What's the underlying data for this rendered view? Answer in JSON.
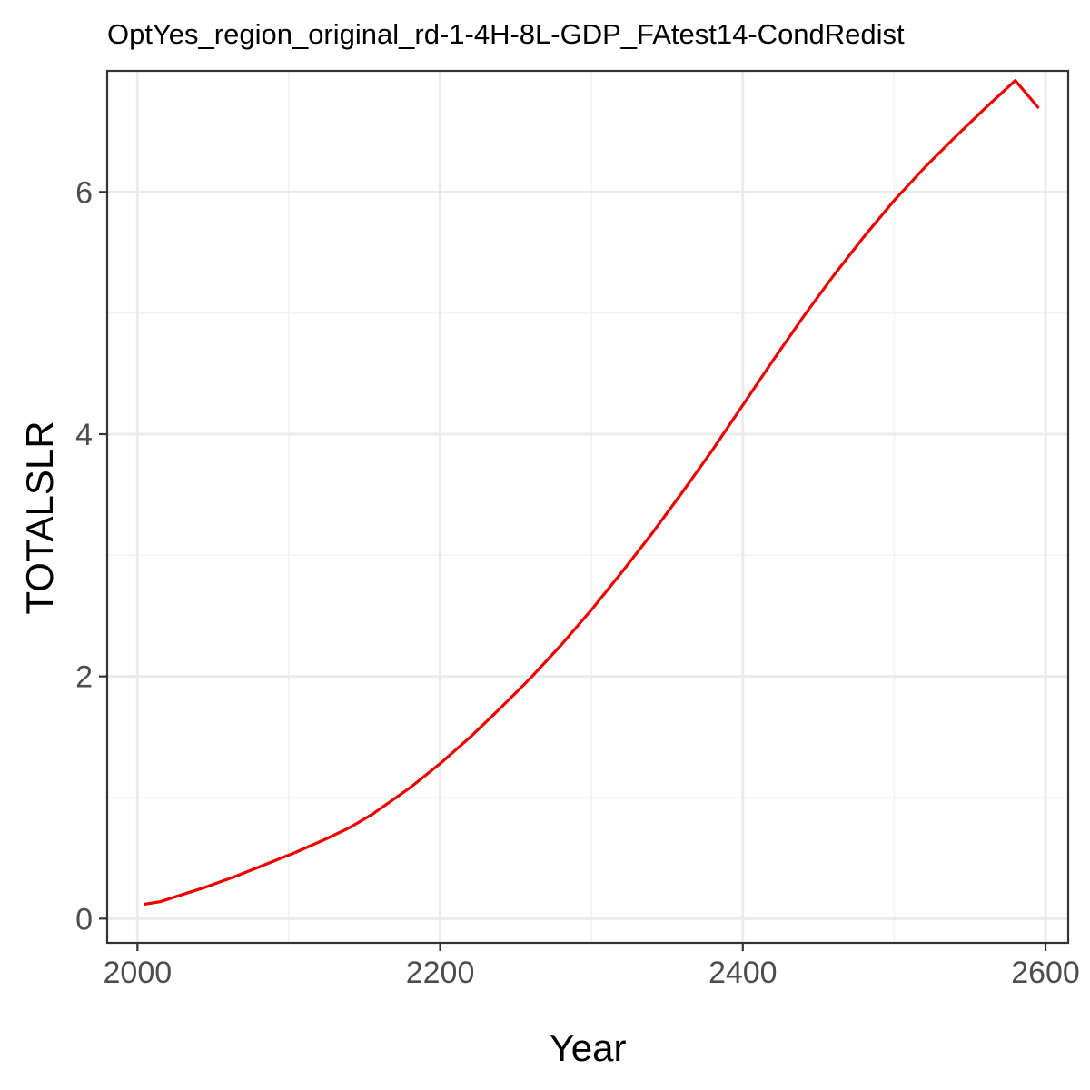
{
  "chart_data": {
    "type": "line",
    "title": "OptYes_region_original_rd-1-4H-8L-GDP_FAtest14-CondRedist",
    "xlabel": "Year",
    "ylabel": "TOTALSLR",
    "xlim": [
      1980,
      2615
    ],
    "ylim": [
      -0.2,
      7.0
    ],
    "x_ticks": [
      2000,
      2200,
      2400,
      2600
    ],
    "x_tick_labels": [
      "2000",
      "2200",
      "2400",
      "2600"
    ],
    "y_ticks": [
      0,
      2,
      4,
      6
    ],
    "y_tick_labels": [
      "0",
      "2",
      "4",
      "6"
    ],
    "x_minor_ticks": [
      2100,
      2300,
      2500
    ],
    "y_minor_ticks": [
      1,
      3,
      5
    ],
    "grid": true,
    "colors": {
      "line": "#ee0000",
      "panel_border": "#333333",
      "grid_major": "#ebebeb",
      "grid_minor": "#f3f3f3"
    },
    "series": [
      {
        "x": [
          2005,
          2015,
          2025,
          2045,
          2065,
          2085,
          2105,
          2125,
          2140,
          2155,
          2180,
          2200,
          2220,
          2240,
          2260,
          2280,
          2300,
          2320,
          2340,
          2360,
          2380,
          2400,
          2420,
          2440,
          2460,
          2480,
          2500,
          2520,
          2540,
          2560,
          2580,
          2595
        ],
        "y": [
          0.12,
          0.14,
          0.18,
          0.26,
          0.35,
          0.45,
          0.55,
          0.66,
          0.75,
          0.86,
          1.08,
          1.28,
          1.5,
          1.74,
          1.99,
          2.26,
          2.55,
          2.86,
          3.18,
          3.52,
          3.87,
          4.24,
          4.61,
          4.97,
          5.31,
          5.63,
          5.93,
          6.2,
          6.45,
          6.69,
          6.92,
          6.7
        ]
      }
    ]
  }
}
